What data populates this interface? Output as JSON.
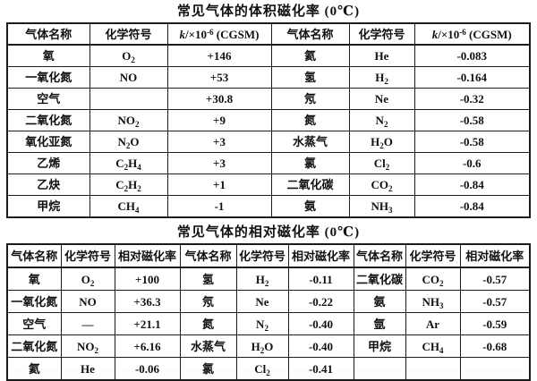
{
  "chart_data": [
    {
      "type": "table",
      "title": "常见气体的体积磁化率 (0℃)",
      "columns": [
        "气体名称",
        "化学符号",
        "k/×10⁻⁶ (CGSM)",
        "气体名称",
        "化学符号",
        "k/×10⁻⁶ (CGSM)"
      ],
      "rows": [
        [
          "氧",
          "O₂",
          "+146",
          "氦",
          "He",
          "-0.083"
        ],
        [
          "一氧化氮",
          "NO",
          "+53",
          "氢",
          "H₂",
          "-0.164"
        ],
        [
          "空气",
          "",
          "+30.8",
          "氖",
          "Ne",
          "-0.32"
        ],
        [
          "二氧化氮",
          "NO₂",
          "+9",
          "氮",
          "N₂",
          "-0.58"
        ],
        [
          "氧化亚氮",
          "N₂O",
          "+3",
          "水蒸气",
          "H₂O",
          "-0.58"
        ],
        [
          "乙烯",
          "C₂H₄",
          "+3",
          "氯",
          "Cl₂",
          "-0.6"
        ],
        [
          "乙炔",
          "C₂H₂",
          "+1",
          "二氧化碳",
          "CO₂",
          "-0.84"
        ],
        [
          "甲烷",
          "CH₄",
          "-1",
          "氨",
          "NH₃",
          "-0.84"
        ]
      ]
    },
    {
      "type": "table",
      "title": "常见气体的相对磁化率 (0℃)",
      "columns": [
        "气体名称",
        "化学符号",
        "相对磁化率",
        "气体名称",
        "化学符号",
        "相对磁化率",
        "气体名称",
        "化学符号",
        "相对磁化率"
      ],
      "rows": [
        [
          "氧",
          "O₂",
          "+100",
          "氢",
          "H₂",
          "-0.11",
          "二氧化碳",
          "CO₂",
          "-0.57"
        ],
        [
          "一氧化氮",
          "NO",
          "+36.3",
          "氖",
          "Ne",
          "-0.22",
          "氨",
          "NH₃",
          "-0.57"
        ],
        [
          "空气",
          "—",
          "+21.1",
          "氮",
          "N₂",
          "-0.40",
          "氩",
          "Ar",
          "-0.59"
        ],
        [
          "二氧化氮",
          "NO₂",
          "+6.16",
          "水蒸气",
          "H₂O",
          "-0.40",
          "甲烷",
          "CH₄",
          "-0.68"
        ],
        [
          "氦",
          "He",
          "-0.06",
          "氯",
          "Cl₂",
          "-0.41",
          "",
          "",
          ""
        ]
      ]
    }
  ]
}
